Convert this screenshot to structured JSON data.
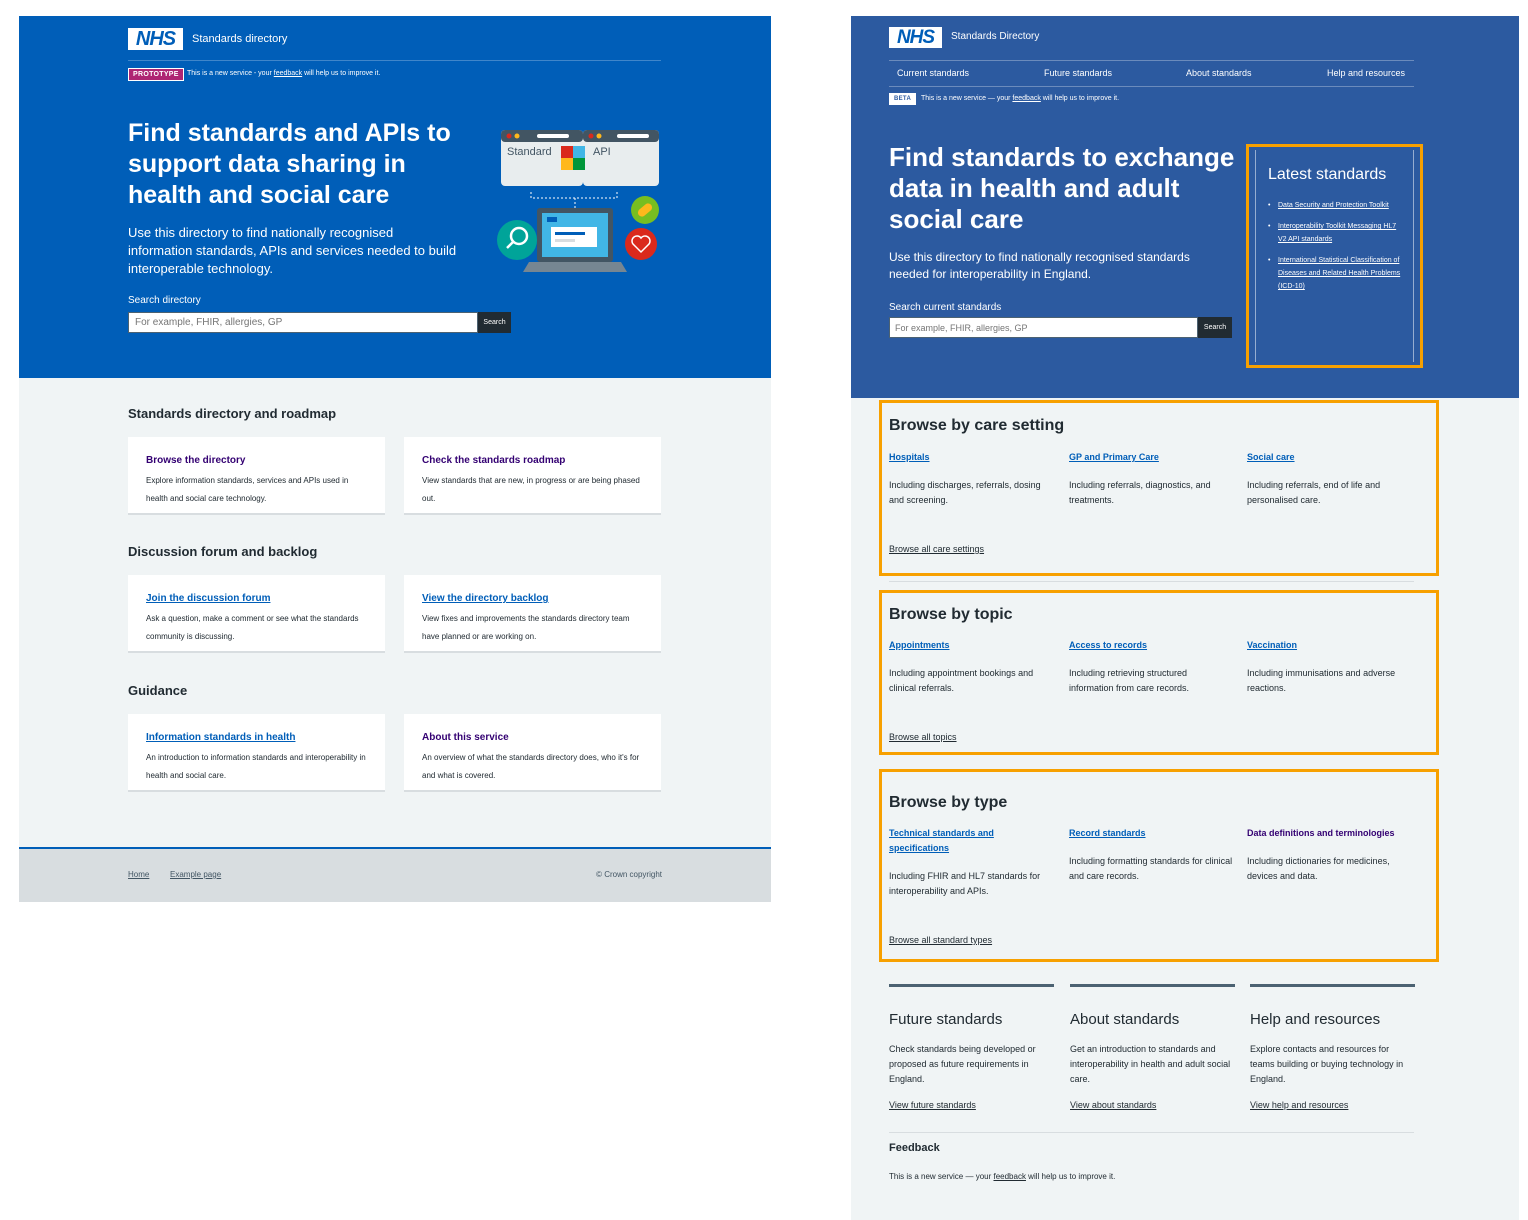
{
  "left": {
    "header": {
      "logo": "NHS",
      "site_name": "Standards directory",
      "phase_tag": "PROTOTYPE",
      "phase_text_before": "This is a new service - your ",
      "phase_text_link": "feedback",
      "phase_text_after": " will help us to improve it."
    },
    "hero": {
      "title": "Find standards and APIs to support data sharing in health and social care",
      "lede": "Use this directory to find nationally recognised information standards, APIs and services needed to build interoperable technology.",
      "illustration_labels": {
        "standard": "Standard",
        "api": "API"
      }
    },
    "search": {
      "label": "Search directory",
      "placeholder": "For example, FHIR, allergies, GP",
      "button": "Search"
    },
    "sections": [
      {
        "heading": "Standards directory and roadmap",
        "cards": [
          {
            "title": "Browse the directory",
            "desc": "Explore information standards, services and APIs used in health and social care technology."
          },
          {
            "title": "Check the standards roadmap",
            "desc": "View standards that are new, in progress or are being phased out."
          }
        ]
      },
      {
        "heading": "Discussion forum and backlog",
        "cards": [
          {
            "title": "Join the discussion forum",
            "desc": "Ask a question, make a comment or see what the standards community is discussing."
          },
          {
            "title": "View the directory backlog",
            "desc": "View fixes and improvements the standards directory team have planned or are working on."
          }
        ]
      },
      {
        "heading": "Guidance",
        "cards": [
          {
            "title": "Information standards in health",
            "desc": "An introduction to information standards and interoperability in health and social care."
          },
          {
            "title": "About this service",
            "desc": "An overview of what the standards directory does, who it's for and what is covered."
          }
        ]
      }
    ],
    "footer": {
      "links": [
        "Home",
        "Example page"
      ],
      "copyright": "© Crown copyright"
    }
  },
  "right": {
    "header": {
      "logo": "NHS",
      "site_name": "Standards Directory",
      "nav": [
        "Current standards",
        "Future standards",
        "About standards",
        "Help and resources"
      ],
      "phase_tag": "BETA",
      "phase_text_before": "This is a new service — your ",
      "phase_text_link": "feedback",
      "phase_text_after": " will help us to improve it."
    },
    "hero": {
      "title": "Find standards to exchange data in health and adult social care",
      "lede": "Use this directory to find nationally recognised standards needed for interoperability in England."
    },
    "search": {
      "label": "Search current standards",
      "placeholder": "For example, FHIR, allergies, GP",
      "button": "Search"
    },
    "latest": {
      "heading": "Latest standards",
      "items": [
        "Data Security and Protection Toolkit",
        "Interoperability Toolkit Messaging HL7 V2 API standards",
        "International Statistical Classification of Diseases and Related Health Problems (ICD-10)"
      ]
    },
    "browse": [
      {
        "heading": "Browse by care setting",
        "cols": [
          {
            "title": "Hospitals",
            "desc": "Including discharges, referrals, dosing and screening."
          },
          {
            "title": "GP and Primary Care",
            "desc": "Including referrals, diagnostics, and treatments."
          },
          {
            "title": "Social care",
            "desc": "Including referrals, end of life and personalised care."
          }
        ],
        "all": "Browse all care settings"
      },
      {
        "heading": "Browse by topic",
        "cols": [
          {
            "title": "Appointments",
            "desc": "Including appointment bookings and clinical referrals."
          },
          {
            "title": "Access to records",
            "desc": "Including retrieving structured information from care records."
          },
          {
            "title": "Vaccination",
            "desc": "Including immunisations and adverse reactions."
          }
        ],
        "all": "Browse all topics"
      },
      {
        "heading": "Browse by type",
        "cols": [
          {
            "title": "Technical standards and specifications",
            "desc": "Including FHIR and HL7 standards for interoperability and APIs."
          },
          {
            "title": "Record standards",
            "desc": "Including formatting standards for clinical and care records."
          },
          {
            "title": "Data definitions and terminologies",
            "desc": "Including dictionaries for medicines, devices and data."
          }
        ],
        "all": "Browse all standard types"
      }
    ],
    "footer_cols": [
      {
        "heading": "Future standards",
        "desc": "Check standards being developed or proposed as future requirements in England.",
        "link": "View future standards"
      },
      {
        "heading": "About standards",
        "desc": "Get an introduction to standards and interoperability in health and adult social care.",
        "link": "View about standards"
      },
      {
        "heading": "Help and resources",
        "desc": "Explore contacts and resources for teams building or buying technology in England.",
        "link": "View help and resources"
      }
    ],
    "feedback": {
      "heading": "Feedback",
      "text_before": "This is a new service — your ",
      "text_link": "feedback",
      "text_after": " will help us to improve it."
    }
  }
}
